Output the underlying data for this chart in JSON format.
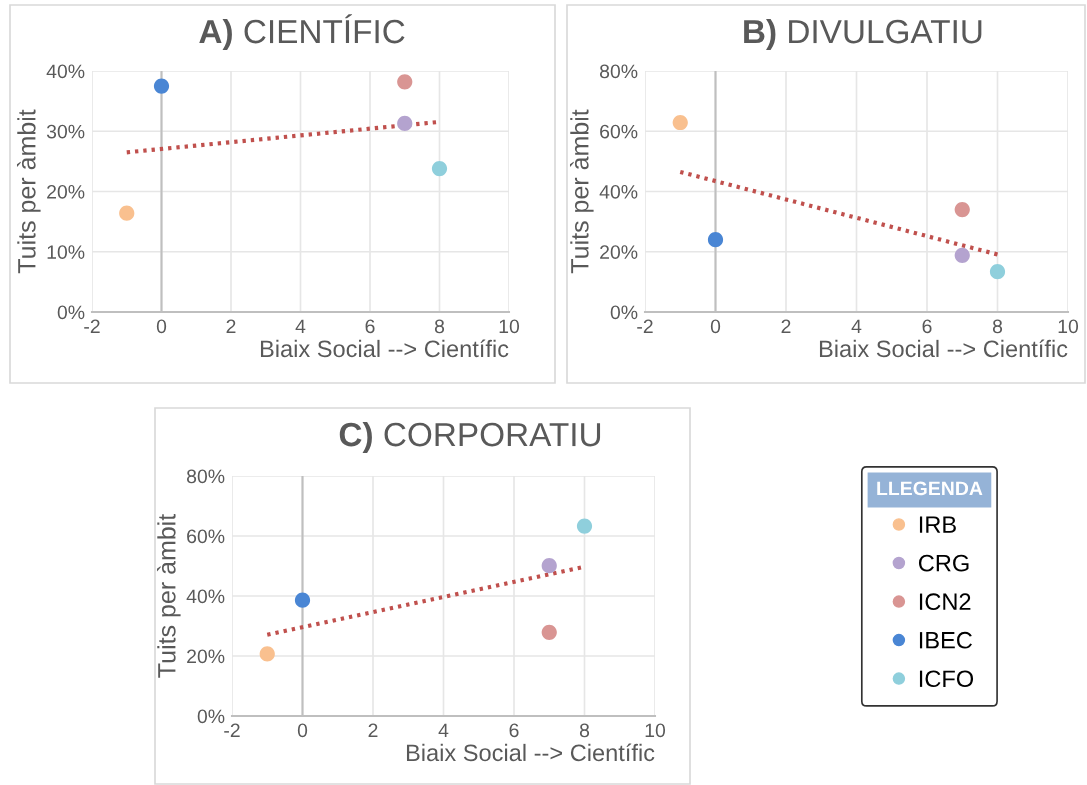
{
  "chart_data": [
    {
      "type": "scatter",
      "title": "A) CIENTÍFIC",
      "xlabel": "Biaix Social --> Científic",
      "ylabel": "Tuits per àmbit",
      "xlim": [
        -2,
        10
      ],
      "xticks": [
        -2,
        0,
        2,
        4,
        6,
        8,
        10
      ],
      "ylim": [
        0,
        40
      ],
      "yticks": [
        {
          "value": 0,
          "label": "0%"
        },
        {
          "value": 10,
          "label": "10%"
        },
        {
          "value": 20,
          "label": "20%"
        },
        {
          "value": 30,
          "label": "30%"
        },
        {
          "value": 40,
          "label": "40%"
        }
      ],
      "grid": true,
      "marker": "circle",
      "ref_lines": [
        {
          "axis": "x",
          "value": 0,
          "color": "#bfbfbf"
        }
      ],
      "series": [
        {
          "color": "#f9c08f",
          "x": [
            -1
          ],
          "values": [
            16.4
          ]
        },
        {
          "color": "#b4a3cf",
          "x": [
            7
          ],
          "values": [
            31.3
          ]
        },
        {
          "color": "#d99593",
          "x": [
            7
          ],
          "values": [
            38.2
          ]
        },
        {
          "color": "#4a86d4",
          "x": [
            0
          ],
          "values": [
            37.5
          ]
        },
        {
          "color": "#8fcfdc",
          "x": [
            8
          ],
          "values": [
            23.8
          ]
        },
        {
          "type": "line",
          "color": "#c0504d",
          "line_style": "dotted",
          "marker": "none",
          "x": [
            -1,
            7.9
          ],
          "values": [
            26.5,
            31.5
          ]
        }
      ]
    },
    {
      "type": "scatter",
      "title": "B) DIVULGATIU",
      "xlabel": "Biaix Social --> Científic",
      "ylabel": "Tuits per àmbit",
      "xlim": [
        -2,
        10
      ],
      "xticks": [
        -2,
        0,
        2,
        4,
        6,
        8,
        10
      ],
      "ylim": [
        0,
        80
      ],
      "yticks": [
        {
          "value": 0,
          "label": "0%"
        },
        {
          "value": 20,
          "label": "20%"
        },
        {
          "value": 40,
          "label": "40%"
        },
        {
          "value": 60,
          "label": "60%"
        },
        {
          "value": 80,
          "label": "80%"
        }
      ],
      "grid": true,
      "marker": "circle",
      "ref_lines": [
        {
          "axis": "x",
          "value": 0,
          "color": "#bfbfbf"
        }
      ],
      "series": [
        {
          "color": "#f9c08f",
          "x": [
            -1
          ],
          "values": [
            62.9
          ]
        },
        {
          "color": "#b4a3cf",
          "x": [
            7
          ],
          "values": [
            18.8
          ]
        },
        {
          "color": "#d99593",
          "x": [
            7
          ],
          "values": [
            34.0
          ]
        },
        {
          "color": "#4a86d4",
          "x": [
            0
          ],
          "values": [
            24.0
          ]
        },
        {
          "color": "#8fcfdc",
          "x": [
            8
          ],
          "values": [
            13.4
          ]
        },
        {
          "type": "line",
          "color": "#c0504d",
          "line_style": "dotted",
          "marker": "none",
          "x": [
            -1,
            8
          ],
          "values": [
            46.5,
            19.1
          ]
        }
      ]
    },
    {
      "type": "scatter",
      "title": "C) CORPORATIU",
      "xlabel": "Biaix Social --> Científic",
      "ylabel": "Tuits per àmbit",
      "xlim": [
        -2,
        10
      ],
      "xticks": [
        -2,
        0,
        2,
        4,
        6,
        8,
        10
      ],
      "ylim": [
        0,
        80
      ],
      "yticks": [
        {
          "value": 0,
          "label": "0%"
        },
        {
          "value": 20,
          "label": "20%"
        },
        {
          "value": 40,
          "label": "40%"
        },
        {
          "value": 60,
          "label": "60%"
        },
        {
          "value": 80,
          "label": "80%"
        }
      ],
      "grid": true,
      "marker": "circle",
      "legend": "right",
      "legend_title": "LLEGENDA",
      "ref_lines": [
        {
          "axis": "x",
          "value": 0,
          "color": "#bfbfbf"
        }
      ],
      "series": [
        {
          "name": "IRB",
          "color": "#f9c08f",
          "x": [
            -1
          ],
          "values": [
            20.7
          ]
        },
        {
          "name": "CRG",
          "color": "#b4a3cf",
          "x": [
            7
          ],
          "values": [
            50.1
          ]
        },
        {
          "name": "ICN2",
          "color": "#d99593",
          "x": [
            7
          ],
          "values": [
            27.9
          ]
        },
        {
          "name": "IBEC",
          "color": "#4a86d4",
          "x": [
            0
          ],
          "values": [
            38.6
          ]
        },
        {
          "name": "ICFO",
          "color": "#8fcfdc",
          "x": [
            8
          ],
          "values": [
            63.3
          ]
        },
        {
          "type": "line",
          "color": "#c0504d",
          "line_style": "dotted",
          "marker": "none",
          "x": [
            -1,
            7.9
          ],
          "values": [
            27.1,
            49.5
          ]
        }
      ]
    }
  ]
}
